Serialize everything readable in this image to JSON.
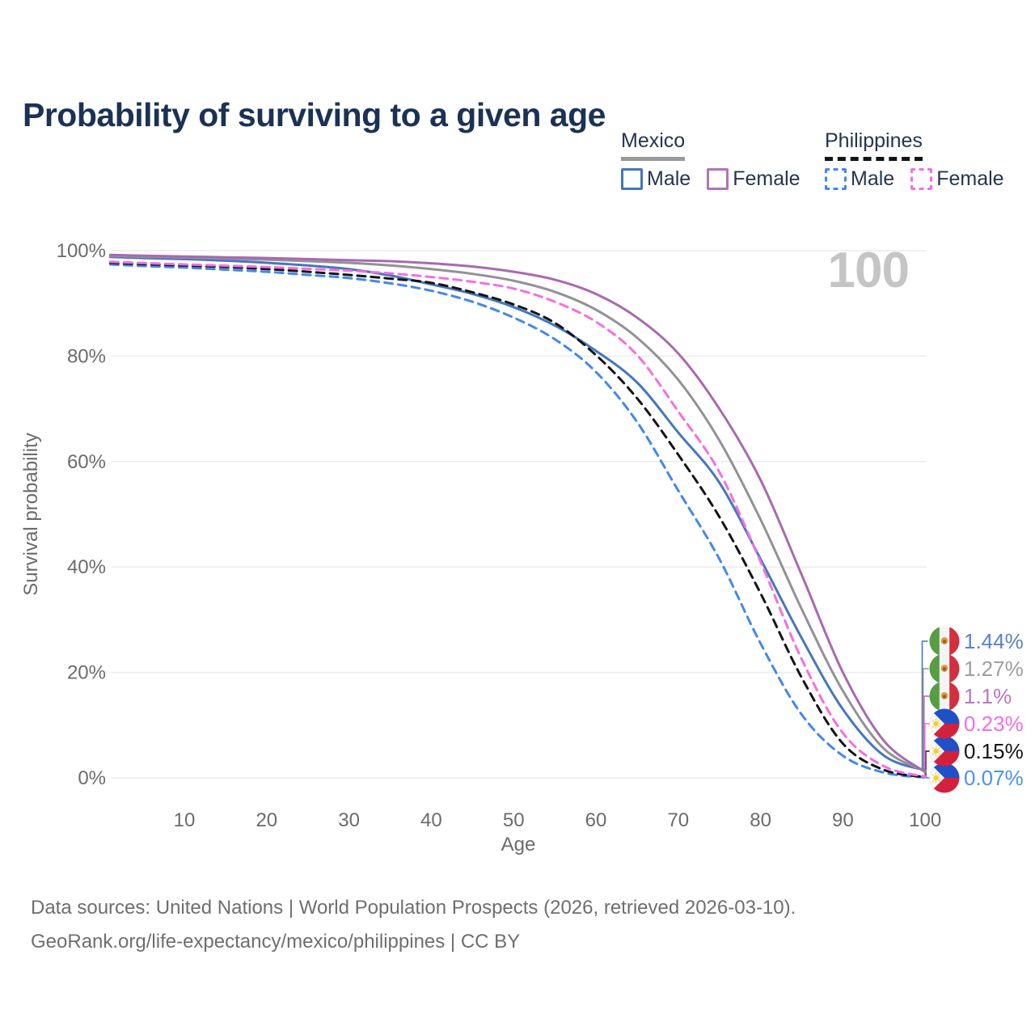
{
  "title": "Probability of surviving to a given age",
  "watermark": "100",
  "legend": {
    "groups": [
      {
        "country": "Mexico",
        "underline_style": "solid",
        "underline_color": "#9a9a9a",
        "items": [
          {
            "label": "Male",
            "color": "#4477bd",
            "dashed": false
          },
          {
            "label": "Female",
            "color": "#b273b6",
            "dashed": false
          }
        ]
      },
      {
        "country": "Philippines",
        "underline_style": "dashed",
        "underline_color": "#141414",
        "items": [
          {
            "label": "Male",
            "color": "#4287f0",
            "dashed": true
          },
          {
            "label": "Female",
            "color": "#f56ee0",
            "dashed": true
          }
        ]
      }
    ]
  },
  "chart_data": {
    "type": "line",
    "title": "Probability of surviving to a given age",
    "xlabel": "Age",
    "ylabel": "Survival probability",
    "xlim": [
      0,
      100
    ],
    "ylim": [
      0,
      100
    ],
    "grid": true,
    "x_ticks": [
      10,
      20,
      30,
      40,
      50,
      60,
      70,
      80,
      90,
      100
    ],
    "y_tick_values": [
      0,
      20,
      40,
      60,
      80,
      100
    ],
    "y_tick_labels": [
      "0%",
      "20%",
      "40%",
      "60%",
      "80%",
      "100%"
    ],
    "x": [
      1,
      5,
      10,
      15,
      20,
      25,
      30,
      35,
      40,
      45,
      50,
      55,
      60,
      65,
      70,
      75,
      80,
      85,
      90,
      95,
      100
    ],
    "series": [
      {
        "name": "Mexico Male",
        "country": "Mexico",
        "sex": "Male",
        "color": "#4477bd",
        "dashed": false,
        "flag": "mexico",
        "end_label": "1.44%",
        "end_label_color": "#5b80c8",
        "label_row": 0,
        "values": [
          98.8,
          98.6,
          98.4,
          98.1,
          97.7,
          97.2,
          96.5,
          95.3,
          93.6,
          91.8,
          89.3,
          85.8,
          81.0,
          75.0,
          65.5,
          56.0,
          41.5,
          26.5,
          13.0,
          4.2,
          1.44
        ]
      },
      {
        "name": "Mexico Both sexes",
        "country": "Mexico",
        "sex": "Both sexes",
        "color": "#929296",
        "dashed": false,
        "flag": "mexico",
        "end_label": "1.27%",
        "end_label_color": "#9e9ea2",
        "label_row": 1,
        "values": [
          99.0,
          98.85,
          98.7,
          98.5,
          98.3,
          98.0,
          97.7,
          97.2,
          96.5,
          95.6,
          94.3,
          92.2,
          88.8,
          83.5,
          75.5,
          64.0,
          49.0,
          32.0,
          16.5,
          5.5,
          1.27
        ]
      },
      {
        "name": "Mexico Female",
        "country": "Mexico",
        "sex": "Female",
        "color": "#a969b0",
        "dashed": false,
        "flag": "mexico",
        "end_label": "1.1%",
        "end_label_color": "#b878bb",
        "label_row": 2,
        "values": [
          99.2,
          99.05,
          98.9,
          98.75,
          98.6,
          98.4,
          98.2,
          98.0,
          97.6,
          97.0,
          96.0,
          94.5,
          91.8,
          87.3,
          80.5,
          70.0,
          56.5,
          38.5,
          20.0,
          7.0,
          1.1
        ]
      },
      {
        "name": "Philippines Male",
        "country": "Philippines",
        "sex": "Male",
        "color": "#4287f0",
        "dashed": true,
        "flag": "philippines",
        "end_label": "0.07%",
        "end_label_color": "#4a90f5",
        "label_row": 5,
        "values": [
          97.4,
          97.1,
          96.8,
          96.4,
          96.0,
          95.4,
          94.8,
          93.8,
          92.4,
          90.3,
          87.3,
          83.2,
          77.0,
          67.5,
          54.5,
          41.5,
          25.5,
          12.0,
          4.2,
          1.0,
          0.07
        ]
      },
      {
        "name": "Philippines Both sexes",
        "country": "Philippines",
        "sex": "Both sexes",
        "color": "#141414",
        "dashed": true,
        "flag": "philippines",
        "end_label": "0.15%",
        "end_label_color": "#141414",
        "label_row": 4,
        "values": [
          97.7,
          97.45,
          97.2,
          96.9,
          96.5,
          96.0,
          95.4,
          94.7,
          93.9,
          92.1,
          89.8,
          86.3,
          80.2,
          72.0,
          61.3,
          49.5,
          35.0,
          19.0,
          6.5,
          1.5,
          0.15
        ]
      },
      {
        "name": "Philippines Female",
        "country": "Philippines",
        "sex": "Female",
        "color": "#f56ee0",
        "dashed": true,
        "flag": "philippines",
        "end_label": "0.23%",
        "end_label_color": "#f56ee0",
        "label_row": 3,
        "values": [
          97.9,
          97.65,
          97.4,
          97.15,
          96.9,
          96.55,
          96.2,
          95.7,
          95.0,
          94.1,
          92.8,
          90.3,
          86.5,
          80.2,
          69.5,
          58.0,
          41.0,
          22.5,
          8.5,
          2.2,
          0.23
        ]
      }
    ]
  },
  "footer": {
    "line1": "Data sources: United Nations | World Population Prospects (2026, retrieved 2026-03-10).",
    "line2": "GeoRank.org/life-expectancy/mexico/philippines | CC BY"
  }
}
